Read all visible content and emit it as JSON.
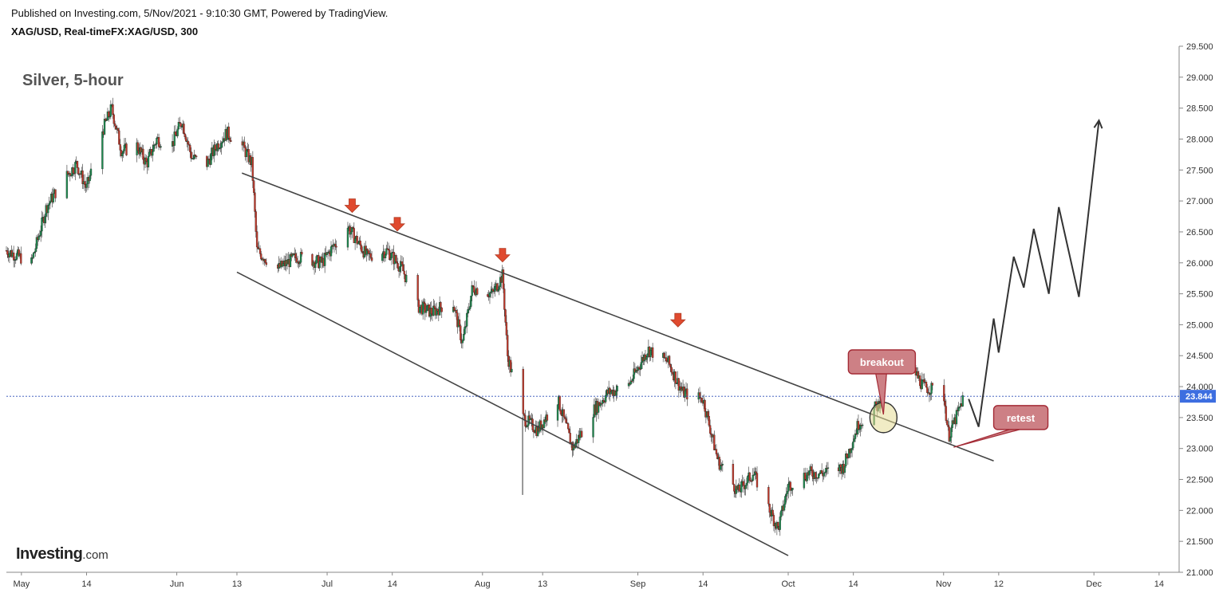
{
  "header": {
    "published": "Published on Investing.com, 5/Nov/2021 - 9:10:30 GMT, Powered by TradingView.",
    "symbol": "XAG/USD, Real-timeFX:XAG/USD, 300"
  },
  "logo": {
    "main": "Investing",
    "domain": ".com"
  },
  "colors": {
    "up": "#1e8a4f",
    "down": "#c0392b",
    "trendline": "#444444",
    "marker": "#e04a2f",
    "callout_fill": "#cd8085",
    "callout_border": "#a32a35",
    "price_label_bg": "#3d6ee0",
    "price_line": "#2f4fb8"
  },
  "chart_data": {
    "type": "candlestick",
    "title": "Silver, 5-hour",
    "xlabel": "",
    "ylabel": "",
    "ylim": [
      21.0,
      29.5
    ],
    "grid": false,
    "x_ticks": [
      "May",
      "14",
      "Jun",
      "13",
      "Jul",
      "14",
      "Aug",
      "13",
      "Sep",
      "14",
      "Oct",
      "14",
      "Nov",
      "12",
      "Dec",
      "14"
    ],
    "y_ticks": [
      "21.000",
      "21.500",
      "22.000",
      "22.500",
      "23.000",
      "23.500",
      "24.000",
      "24.500",
      "25.000",
      "25.500",
      "26.000",
      "26.500",
      "27.000",
      "27.500",
      "28.000",
      "28.500",
      "29.000",
      "29.500"
    ],
    "last_price": "23.844",
    "price_path": [
      [
        "2021-04-28",
        26.2
      ],
      [
        "2021-05-03",
        26.0
      ],
      [
        "2021-05-06",
        26.9
      ],
      [
        "2021-05-09",
        27.3
      ],
      [
        "2021-05-12",
        27.6
      ],
      [
        "2021-05-14",
        27.2
      ],
      [
        "2021-05-17",
        28.1
      ],
      [
        "2021-05-19",
        28.5
      ],
      [
        "2021-05-21",
        27.8
      ],
      [
        "2021-05-24",
        27.9
      ],
      [
        "2021-05-26",
        27.6
      ],
      [
        "2021-05-28",
        28.0
      ],
      [
        "2021-05-31",
        27.9
      ],
      [
        "2021-06-02",
        28.3
      ],
      [
        "2021-06-04",
        27.7
      ],
      [
        "2021-06-07",
        27.6
      ],
      [
        "2021-06-09",
        27.9
      ],
      [
        "2021-06-11",
        28.1
      ],
      [
        "2021-06-14",
        27.9
      ],
      [
        "2021-06-16",
        27.6
      ],
      [
        "2021-06-17",
        26.2
      ],
      [
        "2021-06-21",
        25.9
      ],
      [
        "2021-06-25",
        26.1
      ],
      [
        "2021-06-30",
        26.0
      ],
      [
        "2021-07-05",
        26.6
      ],
      [
        "2021-07-09",
        26.1
      ],
      [
        "2021-07-13",
        26.2
      ],
      [
        "2021-07-16",
        25.9
      ],
      [
        "2021-07-19",
        25.3
      ],
      [
        "2021-07-22",
        25.2
      ],
      [
        "2021-07-26",
        25.4
      ],
      [
        "2021-07-28",
        24.7
      ],
      [
        "2021-07-30",
        25.6
      ],
      [
        "2021-08-03",
        25.5
      ],
      [
        "2021-08-05",
        25.8
      ],
      [
        "2021-08-06",
        24.5
      ],
      [
        "2021-08-09",
        23.5
      ],
      [
        "2021-08-12",
        23.3
      ],
      [
        "2021-08-16",
        23.8
      ],
      [
        "2021-08-19",
        23.0
      ],
      [
        "2021-08-23",
        23.6
      ],
      [
        "2021-08-26",
        23.9
      ],
      [
        "2021-08-30",
        24.0
      ],
      [
        "2021-09-03",
        24.6
      ],
      [
        "2021-09-07",
        24.4
      ],
      [
        "2021-09-10",
        23.9
      ],
      [
        "2021-09-14",
        23.8
      ],
      [
        "2021-09-17",
        22.8
      ],
      [
        "2021-09-21",
        22.3
      ],
      [
        "2021-09-24",
        22.6
      ],
      [
        "2021-09-29",
        21.7
      ],
      [
        "2021-10-01",
        22.4
      ],
      [
        "2021-10-05",
        22.6
      ],
      [
        "2021-10-08",
        22.6
      ],
      [
        "2021-10-12",
        22.7
      ],
      [
        "2021-10-15",
        23.4
      ],
      [
        "2021-10-19",
        23.7
      ],
      [
        "2021-10-21",
        24.4
      ],
      [
        "2021-10-25",
        24.4
      ],
      [
        "2021-10-28",
        24.0
      ],
      [
        "2021-11-01",
        23.9
      ],
      [
        "2021-11-02",
        23.2
      ],
      [
        "2021-11-04",
        23.6
      ],
      [
        "2021-11-05",
        23.844
      ]
    ],
    "special_wicks": [
      {
        "date": "2021-08-09",
        "low": 22.25
      }
    ],
    "annotations": {
      "channel_upper": [
        [
          "2021-06-14",
          27.45
        ],
        [
          "2021-11-11",
          22.8
        ]
      ],
      "channel_lower": [
        [
          "2021-06-13",
          25.85
        ],
        [
          "2021-10-01",
          21.27
        ]
      ],
      "down_arrows": [
        {
          "date": "2021-07-06",
          "price": 26.75
        },
        {
          "date": "2021-07-15",
          "price": 26.45
        },
        {
          "date": "2021-08-05",
          "price": 25.95
        },
        {
          "date": "2021-09-09",
          "price": 24.9
        }
      ],
      "projection_path": [
        [
          "2021-11-06",
          23.8
        ],
        [
          "2021-11-08",
          23.35
        ],
        [
          "2021-11-11",
          25.1
        ],
        [
          "2021-11-12",
          24.55
        ],
        [
          "2021-11-15",
          26.1
        ],
        [
          "2021-11-17",
          25.6
        ],
        [
          "2021-11-19",
          26.55
        ],
        [
          "2021-11-22",
          25.5
        ],
        [
          "2021-11-24",
          26.9
        ],
        [
          "2021-11-28",
          25.45
        ],
        [
          "2021-12-02",
          28.3
        ]
      ],
      "breakout_circle": {
        "date": "2021-10-20",
        "price": 23.5
      },
      "callouts": [
        {
          "text": "breakout",
          "date": "2021-10-13",
          "price": 24.4,
          "target_date": "2021-10-20",
          "target_price": 23.55
        },
        {
          "text": "retest",
          "date": "2021-11-11",
          "price": 23.5,
          "target_date": "2021-11-03",
          "target_price": 23.02
        }
      ]
    }
  }
}
